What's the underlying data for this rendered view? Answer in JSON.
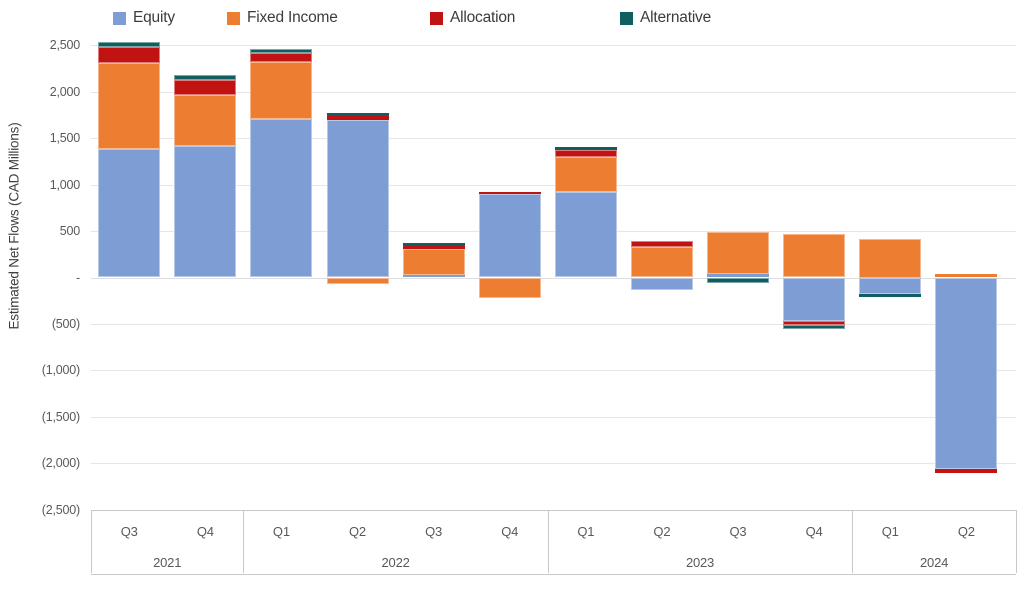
{
  "legend": {
    "items": [
      {
        "label": "Equity",
        "color": "#7E9DD4"
      },
      {
        "label": "Fixed Income",
        "color": "#ED7D31"
      },
      {
        "label": "Allocation",
        "color": "#C21313"
      },
      {
        "label": "Alternative",
        "color": "#115E62"
      }
    ]
  },
  "y_axis": {
    "title": "Estimated Net Flows (CAD Millions)",
    "tick_labels": [
      "2,500",
      "2,000",
      "1,500",
      "1,000",
      "500",
      "-",
      "(500)",
      "(1,000)",
      "(1,500)",
      "(2,000)",
      "(2,500)"
    ],
    "tick_values": [
      2500,
      2000,
      1500,
      1000,
      500,
      0,
      -500,
      -1000,
      -1500,
      -2000,
      -2500
    ]
  },
  "x_axis": {
    "groups": [
      {
        "year": "2021",
        "quarters": [
          "Q3",
          "Q4"
        ]
      },
      {
        "year": "2022",
        "quarters": [
          "Q1",
          "Q2",
          "Q3",
          "Q4"
        ]
      },
      {
        "year": "2023",
        "quarters": [
          "Q1",
          "Q2",
          "Q3",
          "Q4"
        ]
      },
      {
        "year": "2024",
        "quarters": [
          "Q1",
          "Q2"
        ]
      }
    ]
  },
  "chart_data": {
    "type": "bar",
    "stacked": true,
    "title": "",
    "xlabel": "",
    "ylabel": "Estimated Net Flows (CAD Millions)",
    "ylim": [
      -2500,
      2500
    ],
    "y_tick_step": 500,
    "grid": true,
    "legend_position": "top",
    "units": "CAD Millions (estimated net flows)",
    "categories": [
      "Q3 2021",
      "Q4 2021",
      "Q1 2022",
      "Q2 2022",
      "Q3 2022",
      "Q4 2022",
      "Q1 2023",
      "Q2 2023",
      "Q3 2023",
      "Q4 2023",
      "Q1 2024",
      "Q2 2024"
    ],
    "series": [
      {
        "name": "Equity",
        "color": "#7E9DD4",
        "values": [
          1385,
          1420,
          1710,
          1700,
          25,
          895,
          920,
          -135,
          35,
          -470,
          -180,
          -2065
        ]
      },
      {
        "name": "Fixed Income",
        "color": "#ED7D31",
        "values": [
          925,
          545,
          615,
          -65,
          280,
          -220,
          375,
          330,
          455,
          465,
          415,
          35
        ]
      },
      {
        "name": "Allocation",
        "color": "#C21313",
        "values": [
          170,
          165,
          90,
          35,
          35,
          25,
          80,
          65,
          0,
          -45,
          0,
          -40
        ]
      },
      {
        "name": "Alternative",
        "color": "#115E62",
        "values": [
          55,
          50,
          45,
          35,
          35,
          0,
          30,
          0,
          -55,
          -45,
          -35,
          0
        ]
      }
    ]
  }
}
